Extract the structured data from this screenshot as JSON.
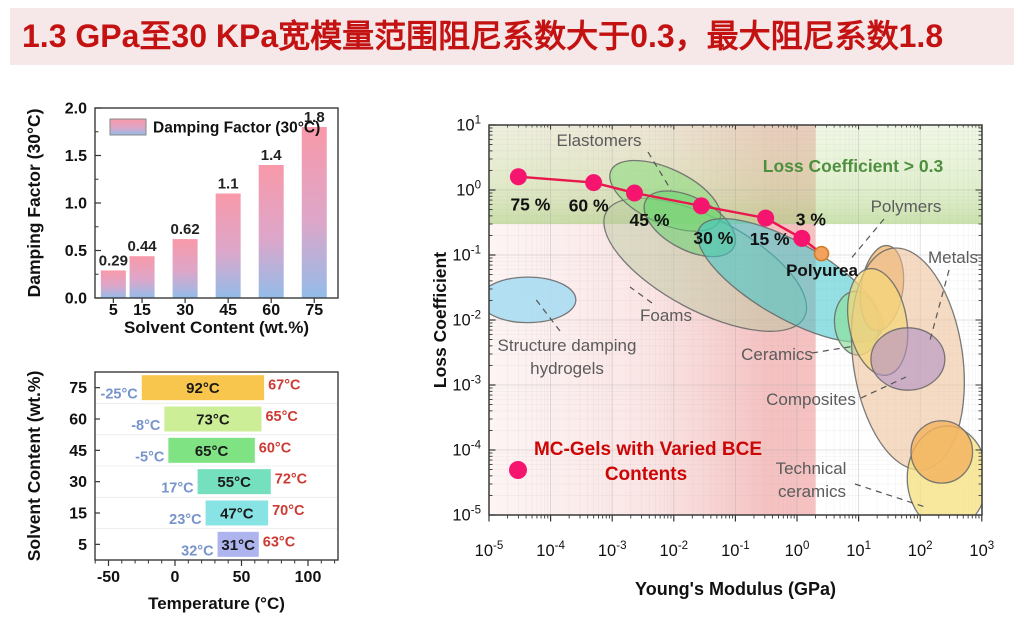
{
  "slide": {
    "title": "1.3 GPa至30 KPa宽模量范围阻尼系数大于0.3，最大阻尼系数1.8",
    "title_color": "#c41212",
    "title_bg": "#f6e8e8"
  },
  "chart_data": [
    {
      "id": "damping",
      "type": "bar",
      "legend": "Damping Factor (30°C)",
      "xlabel": "Solvent Content (wt.%)",
      "ylabel": "Damping Factor (30°C)",
      "categories": [
        5,
        15,
        30,
        45,
        60,
        75
      ],
      "values": [
        0.29,
        0.44,
        0.62,
        1.1,
        1.4,
        1.8
      ],
      "value_labels": [
        "0.29",
        "0.44",
        "0.62",
        "1.1",
        "1.4",
        "1.8"
      ],
      "ylim": [
        0,
        2.0
      ],
      "yticks": [
        0,
        0.5,
        1.0,
        1.5,
        2.0
      ],
      "bar_color_top": "#f899a9",
      "bar_color_mid": "#dda6c9",
      "bar_color_bottom": "#93bce9"
    },
    {
      "id": "temp-windows",
      "type": "range_bar",
      "xlabel": "Temperature (°C)",
      "ylabel": "Solvent Content (wt.%)",
      "xticks": [
        -50,
        0,
        50,
        100
      ],
      "xlim": [
        -60,
        122
      ],
      "low_label_color": "#7793cb",
      "high_label_color": "#cd3a33",
      "bars": [
        {
          "category": 75,
          "from": -25,
          "to": 67,
          "width_label": "92°C",
          "from_label": "-25°C",
          "to_label": "67°C",
          "color": "#f9c64d"
        },
        {
          "category": 60,
          "from": -8,
          "to": 65,
          "width_label": "73°C",
          "from_label": "-8°C",
          "to_label": "65°C",
          "color": "#cbee96"
        },
        {
          "category": 45,
          "from": -5,
          "to": 60,
          "width_label": "65°C",
          "from_label": "-5°C",
          "to_label": "60°C",
          "color": "#7fe383"
        },
        {
          "category": 30,
          "from": 17,
          "to": 72,
          "width_label": "55°C",
          "from_label": "17°C",
          "to_label": "72°C",
          "color": "#75e0bd"
        },
        {
          "category": 15,
          "from": 23,
          "to": 70,
          "width_label": "47°C",
          "from_label": "23°C",
          "to_label": "70°C",
          "color": "#88e4e4"
        },
        {
          "category": 5,
          "from": 32,
          "to": 63,
          "width_label": "31°C",
          "from_label": "32°C",
          "to_label": "63°C",
          "color": "#aeb5ee"
        }
      ]
    },
    {
      "id": "ashby",
      "type": "scatter_regions",
      "xlabel": "Young's Modulus (GPa)",
      "ylabel": "Loss Coefficient",
      "xlim_log": [
        -5,
        3
      ],
      "ylim_log": [
        -5,
        1
      ],
      "green_band": {
        "threshold": 0.3,
        "fill_top": "rgba(210,232,178,0.32)",
        "fill_bottom": "rgba(165,206,118,0.6)"
      },
      "pink_band": {
        "E_from": 1e-05,
        "E_to": 2,
        "fill_left": "rgba(246,205,205,0.22)",
        "fill_right": "rgba(238,152,152,0.6)"
      },
      "series": {
        "name": "MC-Gels with Varied BCE Contents",
        "dot_color": "#f5156f",
        "line_color": "#e8174c",
        "points": [
          {
            "label": "75 %",
            "E": 3e-05,
            "eta": 1.6
          },
          {
            "label": "60 %",
            "E": 0.0005,
            "eta": 1.3
          },
          {
            "label": "45 %",
            "E": 0.0023,
            "eta": 0.9
          },
          {
            "label": "30 %",
            "E": 0.028,
            "eta": 0.57
          },
          {
            "label": "15 %",
            "E": 0.31,
            "eta": 0.37
          },
          {
            "label": "3 %",
            "E": 1.2,
            "eta": 0.18
          }
        ]
      },
      "polyurea": {
        "label": "Polyurea",
        "E": 2.5,
        "eta": 0.105,
        "color": "#f2a25c",
        "stroke": "#cf7d2a"
      },
      "regions": [
        {
          "name": "structure-damping-hydrogels",
          "fill": "#a9dcf2",
          "opacity": 0.88,
          "cx": -4.37,
          "cy": -1.69,
          "rx": 0.78,
          "ry": 0.35,
          "rot": 0
        },
        {
          "name": "foams",
          "fill": "#b5c79c",
          "opacity": 0.45,
          "cx": -1.49,
          "cy": -1.15,
          "rx": 1.82,
          "ry": 0.71,
          "rot": 28
        },
        {
          "name": "elastomers-outer",
          "fill": "#90dc82",
          "opacity": 0.6,
          "cx": -2.14,
          "cy": -0.09,
          "rx": 0.97,
          "ry": 0.42,
          "rot": 25
        },
        {
          "name": "elastomers-inner",
          "fill": "#5ed26a",
          "opacity": 0.5,
          "cx": -1.74,
          "cy": -0.52,
          "rx": 0.81,
          "ry": 0.4,
          "rot": 28
        },
        {
          "name": "polymers",
          "fill": "#3cc6ca",
          "opacity": 0.55,
          "cx": -0.11,
          "cy": -1.39,
          "rx": 1.7,
          "ry": 0.58,
          "rot": 30
        },
        {
          "name": "natural-materials",
          "fill": "#8ce09a",
          "opacity": 0.65,
          "cx": 0.97,
          "cy": -2.05,
          "rx": 0.36,
          "ry": 0.49,
          "rot": -5
        },
        {
          "name": "polymers-stiff",
          "fill": "#f2b25e",
          "opacity": 0.7,
          "cx": 1.38,
          "cy": -1.51,
          "rx": 0.34,
          "ry": 0.66,
          "rot": 8
        },
        {
          "name": "metals",
          "fill": "#ecbd92",
          "opacity": 0.55,
          "cx": 1.8,
          "cy": -2.6,
          "rx": 0.89,
          "ry": 1.72,
          "rot": -8
        },
        {
          "name": "ceramics",
          "fill": "#f5d778",
          "opacity": 0.7,
          "cx": 1.31,
          "cy": -2.03,
          "rx": 0.47,
          "ry": 0.83,
          "rot": -10
        },
        {
          "name": "composites",
          "fill": "#b18fc7",
          "opacity": 0.6,
          "cx": 1.8,
          "cy": -2.6,
          "rx": 0.6,
          "ry": 0.48,
          "rot": 0
        },
        {
          "name": "technical-ceramics",
          "fill": "#f6e07e",
          "opacity": 0.75,
          "cx": 2.44,
          "cy": -4.43,
          "rx": 0.65,
          "ry": 0.8,
          "rot": 0
        },
        {
          "name": "technical-ceramics-core",
          "fill": "#f2b25e",
          "opacity": 0.8,
          "cx": 2.35,
          "cy": -4.03,
          "rx": 0.5,
          "ry": 0.48,
          "rot": 0
        }
      ],
      "annotations": {
        "elastomers": "Elastomers",
        "loss_band": "Loss Coefficient > 0.3",
        "polymers": "Polymers",
        "metals": "Metals",
        "foams": "Foams",
        "hydrogels1": "Structure damping",
        "hydrogels2": "hydrogels",
        "ceramics": "Ceramics",
        "composites": "Composites",
        "tech1": "Technical",
        "tech2": "ceramics",
        "polyurea": "Polyurea",
        "mcgels1": "MC-Gels with Varied BCE",
        "mcgels2": "Contents"
      }
    }
  ]
}
